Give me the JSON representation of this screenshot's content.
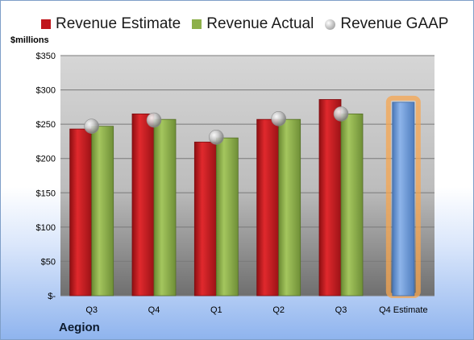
{
  "unit_label": "$millions",
  "company": "Aegion",
  "legend": [
    {
      "label": "Revenue Estimate",
      "color": "#c0161c",
      "shape": "box"
    },
    {
      "label": "Revenue Actual",
      "color": "#8db04a",
      "shape": "box"
    },
    {
      "label": "Revenue GAAP",
      "color": "#b5b5b5",
      "shape": "dot"
    }
  ],
  "chart_data": {
    "type": "bar",
    "categories": [
      "Q3",
      "Q4",
      "Q1",
      "Q2",
      "Q3",
      "Q4 Estimate"
    ],
    "series": [
      {
        "name": "Revenue Estimate",
        "values": [
          243,
          265,
          224,
          257,
          286,
          null
        ],
        "color": "#c0161c"
      },
      {
        "name": "Revenue Actual",
        "values": [
          247,
          257,
          230,
          257,
          265,
          null
        ],
        "color": "#8db04a"
      },
      {
        "name": "Revenue GAAP",
        "values": [
          247,
          256,
          231,
          258,
          265,
          null
        ],
        "color": "#b5b5b5",
        "marker": "dot"
      },
      {
        "name": "Q4 Estimate",
        "values": [
          null,
          null,
          null,
          null,
          null,
          282
        ],
        "color": "#6a98d6",
        "highlight": "#f5a550"
      }
    ],
    "ylim": [
      0,
      350
    ],
    "yticks": [
      "$-",
      "$50",
      "$100",
      "$150",
      "$200",
      "$250",
      "$300",
      "$350"
    ],
    "ytick_values": [
      0,
      50,
      100,
      150,
      200,
      250,
      300,
      350
    ],
    "grid": true,
    "legend_position": "top"
  }
}
